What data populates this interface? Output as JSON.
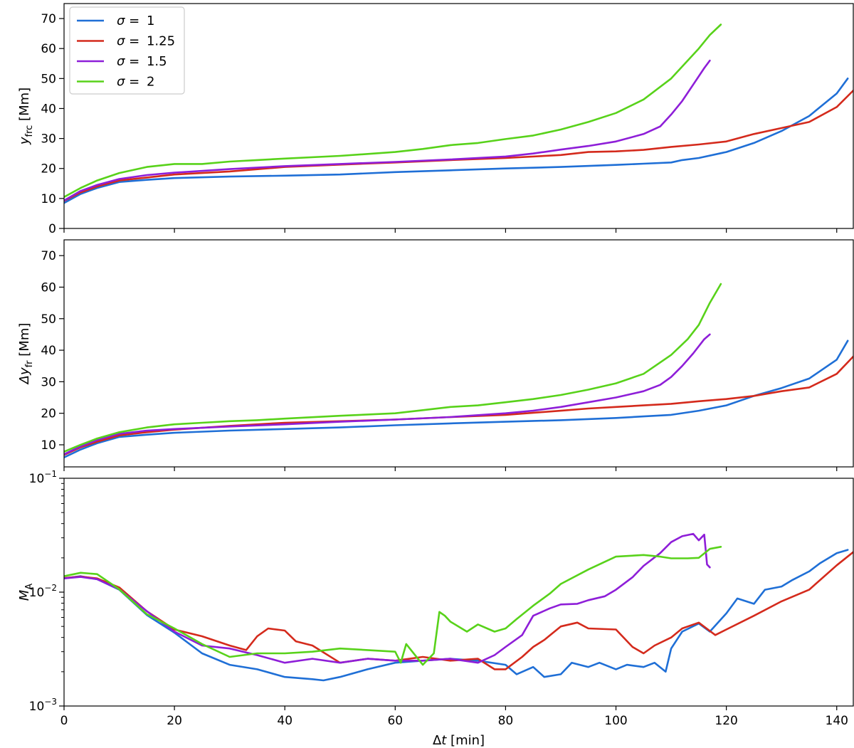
{
  "chart_data": [
    {
      "type": "line",
      "panel": "top",
      "ylabel_main": "y",
      "ylabel_sub": "frc",
      "ylabel_unit": "[Mm]",
      "xlim": [
        0,
        143
      ],
      "ylim": [
        0,
        75
      ],
      "yticks": [
        0,
        10,
        20,
        30,
        40,
        50,
        60,
        70
      ],
      "legend": {
        "position": "top-left",
        "symbol": "σ =",
        "entries": [
          "1",
          "1.25",
          "1.5",
          "2"
        ]
      },
      "series": [
        {
          "name": "σ = 1",
          "color": "#1f6fd6",
          "x": [
            0,
            3,
            6,
            10,
            15,
            20,
            30,
            40,
            50,
            60,
            70,
            80,
            90,
            100,
            105,
            110,
            112,
            115,
            120,
            125,
            130,
            135,
            140,
            142
          ],
          "y": [
            8.5,
            11.5,
            13.5,
            15.5,
            16.2,
            16.8,
            17.3,
            17.6,
            18,
            18.8,
            19.4,
            20,
            20.5,
            21.2,
            21.6,
            22,
            22.8,
            23.5,
            25.5,
            28.5,
            32.5,
            37.5,
            45,
            50
          ]
        },
        {
          "name": "σ = 1.25",
          "color": "#d42a1c",
          "x": [
            0,
            3,
            6,
            10,
            15,
            20,
            30,
            40,
            50,
            60,
            70,
            80,
            90,
            95,
            100,
            105,
            110,
            115,
            120,
            125,
            130,
            135,
            140,
            143
          ],
          "y": [
            9.2,
            12,
            14,
            16,
            17,
            18,
            19,
            20.5,
            21.3,
            22,
            22.8,
            23.5,
            24.5,
            25.5,
            25.7,
            26.2,
            27.2,
            28,
            29,
            31.5,
            33.5,
            35.5,
            40.5,
            46
          ]
        },
        {
          "name": "σ = 1.5",
          "color": "#8e1ed8",
          "x": [
            0,
            3,
            6,
            10,
            15,
            20,
            30,
            40,
            50,
            60,
            70,
            80,
            85,
            90,
            95,
            100,
            105,
            108,
            110,
            112,
            114,
            116,
            117
          ],
          "y": [
            9.3,
            12.5,
            14.5,
            16.5,
            17.8,
            18.6,
            19.8,
            20.8,
            21.5,
            22.2,
            23,
            24,
            25,
            26.3,
            27.5,
            29,
            31.5,
            34,
            38,
            42.5,
            48,
            53.5,
            56
          ]
        },
        {
          "name": "σ = 2",
          "color": "#58d21a",
          "x": [
            0,
            3,
            6,
            10,
            15,
            20,
            25,
            30,
            35,
            40,
            50,
            60,
            65,
            70,
            75,
            80,
            85,
            90,
            95,
            100,
            105,
            110,
            115,
            117,
            119
          ],
          "y": [
            10.5,
            13.5,
            16,
            18.5,
            20.5,
            21.5,
            21.5,
            22.3,
            22.8,
            23.3,
            24.2,
            25.5,
            26.5,
            27.8,
            28.5,
            29.8,
            31,
            33,
            35.5,
            38.5,
            43,
            50,
            60,
            64.5,
            68
          ]
        }
      ]
    },
    {
      "type": "line",
      "panel": "middle",
      "ylabel_main": "Δy",
      "ylabel_sub": "fr",
      "ylabel_unit": "[Mm]",
      "xlim": [
        0,
        143
      ],
      "ylim": [
        3,
        75
      ],
      "yticks": [
        10,
        20,
        30,
        40,
        50,
        60,
        70
      ],
      "series": [
        {
          "name": "σ = 1",
          "color": "#1f6fd6",
          "x": [
            0,
            3,
            6,
            10,
            15,
            20,
            30,
            40,
            50,
            60,
            70,
            80,
            90,
            100,
            105,
            110,
            115,
            120,
            125,
            130,
            135,
            140,
            142
          ],
          "y": [
            6,
            8.5,
            10.5,
            12.5,
            13.2,
            13.8,
            14.5,
            15,
            15.5,
            16.2,
            16.8,
            17.3,
            17.8,
            18.5,
            19,
            19.5,
            20.8,
            22.5,
            25.5,
            28,
            31,
            37,
            43
          ]
        },
        {
          "name": "σ = 1.25",
          "color": "#d42a1c",
          "x": [
            0,
            3,
            6,
            10,
            15,
            20,
            30,
            40,
            50,
            60,
            70,
            80,
            90,
            95,
            100,
            105,
            110,
            115,
            120,
            125,
            130,
            135,
            140,
            143
          ],
          "y": [
            6.8,
            9.2,
            11,
            13,
            14,
            14.8,
            16,
            17,
            17.5,
            18,
            18.8,
            19.5,
            20.8,
            21.5,
            22,
            22.5,
            23,
            23.8,
            24.5,
            25.5,
            27,
            28.2,
            32.5,
            38
          ]
        },
        {
          "name": "σ = 1.5",
          "color": "#8e1ed8",
          "x": [
            0,
            3,
            6,
            10,
            15,
            20,
            30,
            40,
            50,
            60,
            70,
            80,
            85,
            90,
            95,
            100,
            105,
            108,
            110,
            112,
            114,
            116,
            117
          ],
          "y": [
            7,
            9.5,
            11.5,
            13.5,
            14.5,
            15,
            15.8,
            16.5,
            17.3,
            18,
            18.8,
            20,
            20.8,
            22,
            23.5,
            25,
            27,
            29,
            31.5,
            35,
            39,
            43.5,
            45
          ]
        },
        {
          "name": "σ = 2",
          "color": "#58d21a",
          "x": [
            0,
            3,
            6,
            10,
            15,
            20,
            25,
            30,
            35,
            40,
            50,
            60,
            65,
            70,
            75,
            80,
            85,
            90,
            95,
            100,
            105,
            110,
            113,
            115,
            117,
            119
          ],
          "y": [
            7.8,
            10,
            12,
            14,
            15.5,
            16.5,
            17,
            17.5,
            17.8,
            18.3,
            19.2,
            20,
            21,
            22,
            22.5,
            23.5,
            24.5,
            25.8,
            27.5,
            29.5,
            32.5,
            38.5,
            43.5,
            48,
            55,
            61
          ]
        }
      ]
    },
    {
      "type": "line",
      "panel": "bottom",
      "yscale": "log",
      "ylabel_main": "M",
      "ylabel_sub": "A",
      "xlabel": "Δt [min]",
      "xlim": [
        0,
        143
      ],
      "ylim": [
        0.001,
        0.1
      ],
      "yticks": [
        {
          "value": 0.1,
          "base": "10",
          "exp": "−1"
        },
        {
          "value": 0.01,
          "base": "10",
          "exp": "−2"
        },
        {
          "value": 0.001,
          "base": "10",
          "exp": "−3"
        }
      ],
      "xticks": [
        0,
        20,
        40,
        60,
        80,
        100,
        120,
        140
      ],
      "series": [
        {
          "name": "σ = 1",
          "color": "#1f6fd6",
          "x": [
            0,
            3,
            6,
            10,
            15,
            20,
            25,
            30,
            35,
            40,
            45,
            47,
            50,
            55,
            60,
            65,
            70,
            75,
            80,
            82,
            85,
            87,
            90,
            92,
            95,
            97,
            100,
            102,
            105,
            107,
            109,
            110,
            112,
            115,
            117,
            120,
            122,
            125,
            127,
            130,
            132,
            135,
            137,
            140,
            142
          ],
          "y": [
            0.0132,
            0.0138,
            0.013,
            0.0105,
            0.0063,
            0.0044,
            0.0029,
            0.0023,
            0.0021,
            0.0018,
            0.00172,
            0.00168,
            0.0018,
            0.0021,
            0.0024,
            0.0025,
            0.0026,
            0.0025,
            0.0023,
            0.0019,
            0.0022,
            0.0018,
            0.0019,
            0.0024,
            0.0022,
            0.0024,
            0.0021,
            0.0023,
            0.0022,
            0.0024,
            0.002,
            0.0032,
            0.0045,
            0.0053,
            0.0045,
            0.0065,
            0.0088,
            0.0079,
            0.0105,
            0.0112,
            0.0128,
            0.0152,
            0.018,
            0.022,
            0.0235
          ]
        },
        {
          "name": "σ = 1.25",
          "color": "#d42a1c",
          "x": [
            0,
            3,
            6,
            10,
            15,
            20,
            25,
            30,
            33,
            35,
            37,
            40,
            42,
            45,
            50,
            55,
            60,
            65,
            70,
            75,
            78,
            80,
            83,
            85,
            87,
            90,
            93,
            95,
            100,
            103,
            105,
            107,
            110,
            112,
            115,
            118,
            120,
            125,
            130,
            135,
            140,
            143
          ],
          "y": [
            0.0133,
            0.0137,
            0.0132,
            0.011,
            0.0068,
            0.0047,
            0.0041,
            0.0034,
            0.0031,
            0.0041,
            0.0048,
            0.0046,
            0.0037,
            0.0034,
            0.0024,
            0.0026,
            0.0025,
            0.0027,
            0.0025,
            0.0026,
            0.0021,
            0.0021,
            0.0027,
            0.0033,
            0.0038,
            0.005,
            0.0054,
            0.0048,
            0.0047,
            0.0033,
            0.0029,
            0.0034,
            0.004,
            0.0048,
            0.0054,
            0.0042,
            0.0047,
            0.0062,
            0.0083,
            0.0105,
            0.0172,
            0.0225
          ]
        },
        {
          "name": "σ = 1.5",
          "color": "#8e1ed8",
          "x": [
            0,
            3,
            6,
            10,
            15,
            20,
            25,
            30,
            35,
            40,
            45,
            50,
            55,
            60,
            65,
            70,
            75,
            78,
            80,
            83,
            85,
            88,
            90,
            93,
            95,
            98,
            100,
            103,
            105,
            108,
            110,
            112,
            114,
            115,
            116,
            116.5,
            117
          ],
          "y": [
            0.0132,
            0.0136,
            0.013,
            0.0106,
            0.0068,
            0.0045,
            0.0034,
            0.0032,
            0.0028,
            0.0024,
            0.0026,
            0.0024,
            0.0026,
            0.0025,
            0.0025,
            0.0026,
            0.0024,
            0.0028,
            0.0033,
            0.0042,
            0.0062,
            0.0072,
            0.0078,
            0.0079,
            0.0085,
            0.0092,
            0.0105,
            0.0135,
            0.017,
            0.022,
            0.0275,
            0.031,
            0.0325,
            0.0285,
            0.032,
            0.0175,
            0.0165
          ]
        },
        {
          "name": "σ = 2",
          "color": "#58d21a",
          "x": [
            0,
            3,
            6,
            10,
            15,
            20,
            25,
            30,
            35,
            40,
            45,
            50,
            55,
            60,
            61,
            62,
            65,
            67,
            68,
            69,
            70,
            73,
            75,
            78,
            80,
            82,
            85,
            88,
            90,
            95,
            100,
            105,
            108,
            110,
            113,
            115,
            117,
            119
          ],
          "y": [
            0.0138,
            0.0148,
            0.0144,
            0.0106,
            0.0064,
            0.0048,
            0.0035,
            0.0027,
            0.0029,
            0.0029,
            0.003,
            0.0032,
            0.0031,
            0.003,
            0.0024,
            0.0035,
            0.0023,
            0.0029,
            0.0067,
            0.0062,
            0.0055,
            0.0045,
            0.0052,
            0.0045,
            0.0048,
            0.0058,
            0.0076,
            0.0097,
            0.0118,
            0.0158,
            0.0205,
            0.0212,
            0.0205,
            0.0198,
            0.0198,
            0.02,
            0.024,
            0.025
          ]
        }
      ]
    }
  ]
}
